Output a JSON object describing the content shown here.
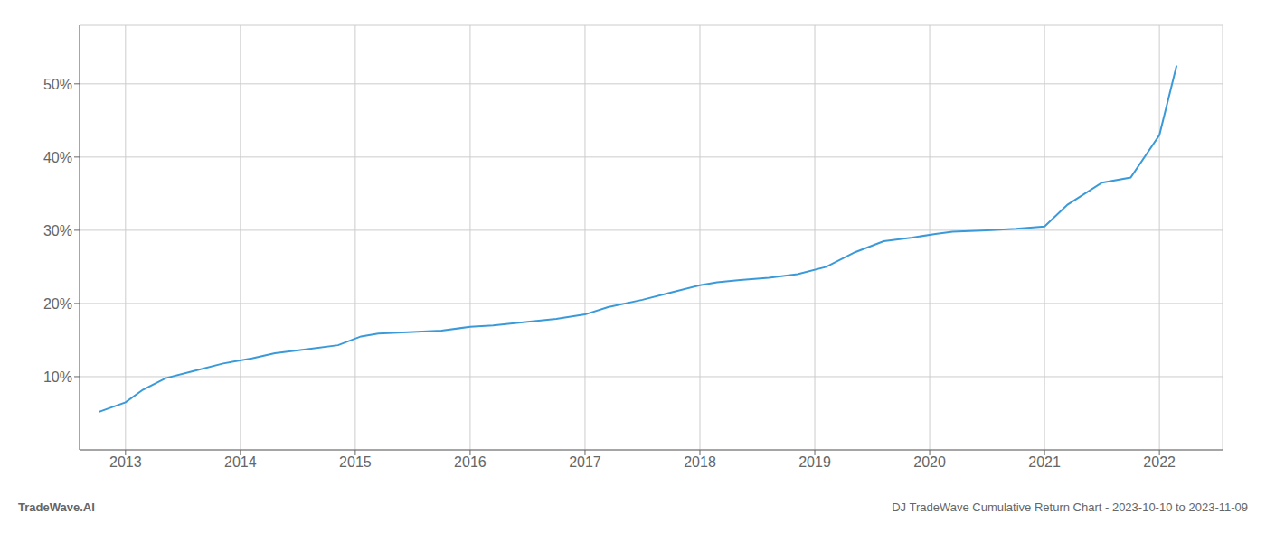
{
  "chart_data": {
    "type": "line",
    "x": [
      2012.77,
      2013.0,
      2013.15,
      2013.35,
      2013.6,
      2013.85,
      2014.1,
      2014.3,
      2014.6,
      2014.85,
      2015.05,
      2015.2,
      2015.5,
      2015.75,
      2016.0,
      2016.2,
      2016.5,
      2016.75,
      2017.0,
      2017.2,
      2017.5,
      2017.75,
      2018.0,
      2018.15,
      2018.35,
      2018.6,
      2018.85,
      2019.1,
      2019.35,
      2019.6,
      2019.85,
      2020.05,
      2020.2,
      2020.5,
      2020.75,
      2021.0,
      2021.2,
      2021.5,
      2021.75,
      2022.0,
      2022.15
    ],
    "values": [
      5.2,
      6.5,
      8.2,
      9.8,
      10.8,
      11.8,
      12.5,
      13.2,
      13.8,
      14.3,
      15.5,
      15.9,
      16.1,
      16.3,
      16.8,
      17.0,
      17.5,
      17.9,
      18.5,
      19.5,
      20.5,
      21.5,
      22.5,
      22.9,
      23.2,
      23.5,
      24.0,
      25.0,
      27.0,
      28.5,
      29.0,
      29.5,
      29.8,
      30.0,
      30.2,
      30.5,
      33.5,
      36.5,
      37.2,
      43.0,
      52.5
    ],
    "color": "#3a9ad9",
    "xlim": [
      2012.6,
      2022.55
    ],
    "xticks": [
      2013,
      2014,
      2015,
      2016,
      2017,
      2018,
      2019,
      2020,
      2021,
      2022
    ],
    "ylim": [
      0,
      58
    ],
    "yticks": [
      {
        "value": 10,
        "label": "10%"
      },
      {
        "value": 20,
        "label": "20%"
      },
      {
        "value": 30,
        "label": "30%"
      },
      {
        "value": 40,
        "label": "40%"
      },
      {
        "value": 50,
        "label": "50%"
      }
    ],
    "grid": true,
    "annotations": [
      "TradeWave.AI",
      "DJ TradeWave Cumulative Return Chart - 2023-10-10 to 2023-11-09"
    ]
  }
}
